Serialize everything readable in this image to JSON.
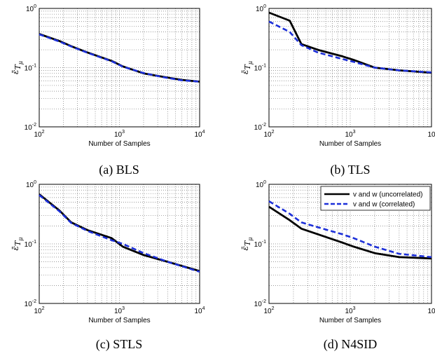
{
  "chart_data": [
    {
      "type": "line",
      "caption": "(a) BLS",
      "xlabel": "Number of Samples",
      "ylabel": "ε̄ T μ",
      "xscale": "log",
      "yscale": "log",
      "xlim": [
        100,
        10000
      ],
      "ylim": [
        0.01,
        1
      ],
      "grid": true,
      "x_tick_labels": [
        "10^2",
        "10^3",
        "10^4"
      ],
      "y_tick_labels": [
        "10^-2",
        "10^-1",
        "10^0"
      ],
      "series": [
        {
          "style": "solid-black",
          "x": [
            100,
            180,
            250,
            400,
            550,
            800,
            1100,
            2000,
            3500,
            6000,
            10000
          ],
          "y": [
            0.37,
            0.28,
            0.23,
            0.18,
            0.155,
            0.13,
            0.105,
            0.08,
            0.07,
            0.062,
            0.058
          ]
        },
        {
          "style": "dashed-blue",
          "x": [
            100,
            180,
            250,
            400,
            550,
            800,
            1100,
            2000,
            3500,
            6000,
            10000
          ],
          "y": [
            0.365,
            0.275,
            0.228,
            0.178,
            0.153,
            0.128,
            0.104,
            0.081,
            0.069,
            0.061,
            0.058
          ]
        }
      ]
    },
    {
      "type": "line",
      "caption": "(b) TLS",
      "xlabel": "Number of Samples",
      "ylabel": "ε̄ T μ",
      "xscale": "log",
      "yscale": "log",
      "xlim": [
        100,
        10000
      ],
      "ylim": [
        0.01,
        1
      ],
      "grid": true,
      "x_tick_labels": [
        "10^2",
        "10^3",
        "10^"
      ],
      "y_tick_labels": [
        "10^-2",
        "10^-1",
        "10^0"
      ],
      "series": [
        {
          "style": "solid-black",
          "x": [
            100,
            180,
            250,
            400,
            800,
            1100,
            2000,
            4000,
            10000
          ],
          "y": [
            0.85,
            0.62,
            0.25,
            0.2,
            0.155,
            0.135,
            0.1,
            0.09,
            0.082
          ]
        },
        {
          "style": "dashed-blue",
          "x": [
            100,
            180,
            250,
            400,
            800,
            1100,
            2000,
            4000,
            10000
          ],
          "y": [
            0.6,
            0.4,
            0.24,
            0.18,
            0.14,
            0.125,
            0.1,
            0.09,
            0.083
          ]
        }
      ]
    },
    {
      "type": "line",
      "caption": "(c) STLS",
      "xlabel": "Number of Samples",
      "ylabel": "ε̄ T μ",
      "xscale": "log",
      "yscale": "log",
      "xlim": [
        100,
        10000
      ],
      "ylim": [
        0.01,
        1
      ],
      "grid": true,
      "x_tick_labels": [
        "10^2",
        "10^3",
        "10^4"
      ],
      "y_tick_labels": [
        "10^-2",
        "10^-1",
        "10^0"
      ],
      "series": [
        {
          "style": "solid-black",
          "x": [
            100,
            180,
            250,
            400,
            800,
            1100,
            2000,
            4000,
            10000
          ],
          "y": [
            0.68,
            0.36,
            0.23,
            0.17,
            0.125,
            0.09,
            0.065,
            0.05,
            0.035
          ]
        },
        {
          "style": "dashed-blue",
          "x": [
            100,
            180,
            250,
            400,
            800,
            1100,
            2000,
            4000,
            10000
          ],
          "y": [
            0.66,
            0.35,
            0.225,
            0.165,
            0.115,
            0.1,
            0.07,
            0.05,
            0.034
          ]
        }
      ]
    },
    {
      "type": "line",
      "caption": "(d) N4SID",
      "xlabel": "Number of Samples",
      "ylabel": "ε̄ T μ",
      "xscale": "log",
      "yscale": "log",
      "xlim": [
        100,
        10000
      ],
      "ylim": [
        0.01,
        1
      ],
      "grid": true,
      "x_tick_labels": [
        "10^2",
        "10^3",
        "10^"
      ],
      "y_tick_labels": [
        "10^-2",
        "10^-1",
        "10^0"
      ],
      "legend": {
        "placement": "top-right",
        "entries": [
          "v and w (uncorrelated)",
          "v and w (correlated)"
        ]
      },
      "series": [
        {
          "name": "v and w (uncorrelated)",
          "style": "solid-black",
          "x": [
            100,
            180,
            250,
            400,
            800,
            1100,
            2000,
            4000,
            10000
          ],
          "y": [
            0.42,
            0.25,
            0.18,
            0.145,
            0.105,
            0.09,
            0.07,
            0.06,
            0.057
          ]
        },
        {
          "name": "v and w (correlated)",
          "style": "dashed-blue",
          "x": [
            100,
            180,
            250,
            400,
            800,
            1100,
            2000,
            4000,
            10000
          ],
          "y": [
            0.52,
            0.32,
            0.23,
            0.19,
            0.145,
            0.125,
            0.09,
            0.068,
            0.06
          ]
        }
      ]
    }
  ],
  "colors": {
    "solid": "#000000",
    "dashed": "#1c2fd9",
    "grid": "#777777"
  }
}
